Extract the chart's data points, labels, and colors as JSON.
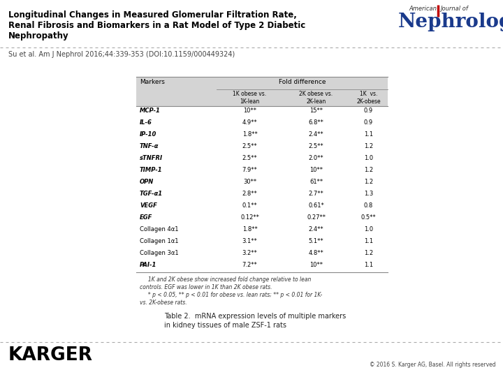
{
  "title_line1": "Longitudinal Changes in Measured Glomerular Filtration Rate,",
  "title_line2": "Renal Fibrosis and Biomarkers in a Rat Model of Type 2 Diabetic",
  "title_line3": "Nephropathy",
  "subtitle": "Su et al. Am J Nephrol 2016;44:339-353 (DOI:10.1159/000449324)",
  "table_title_line1": "Table 2.  mRNA expression levels of multiple markers",
  "table_title_line2": "in kidney tissues of male ZSF-1 rats",
  "footer_left": "KARGER",
  "footer_right": "© 2016 S. Karger AG, Basel. All rights reserved",
  "rows": [
    [
      "MCP-1",
      "10**",
      "15**",
      "0.9"
    ],
    [
      "IL-6",
      "4.9**",
      "6.8**",
      "0.9"
    ],
    [
      "IP-10",
      "1.8**",
      "2.4**",
      "1.1"
    ],
    [
      "TNF-α",
      "2.5**",
      "2.5**",
      "1.2"
    ],
    [
      "sTNFRI",
      "2.5**",
      "2.0**",
      "1.0"
    ],
    [
      "TIMP-1",
      "7.9**",
      "10**",
      "1.2"
    ],
    [
      "OPN",
      "30**",
      "61**",
      "1.2"
    ],
    [
      "TGF-α1",
      "2.8**",
      "2.7**",
      "1.3"
    ],
    [
      "VEGF",
      "0.1**",
      "0.61*",
      "0.8"
    ],
    [
      "EGF",
      "0.12**",
      "0.27**",
      "0.5**"
    ],
    [
      "Collagen 4α1",
      "1.8**",
      "2.4**",
      "1.0"
    ],
    [
      "Collagen 1α1",
      "3.1**",
      "5.1**",
      "1.1"
    ],
    [
      "Collagen 3α1",
      "3.2**",
      "4.8**",
      "1.2"
    ],
    [
      "PAI-1",
      "7.2**",
      "10**",
      "1.1"
    ]
  ],
  "italic_rows": [
    "MCP-1",
    "IL-6",
    "IP-10",
    "TNF-α",
    "sTNFRI",
    "TIMP-1",
    "OPN",
    "TGF-α1",
    "VEGF",
    "EGF",
    "PAI-1"
  ],
  "bold_rows": [
    "MCP-1",
    "IL-6",
    "IP-10",
    "TNF-α",
    "sTNFRI",
    "TIMP-1",
    "OPN",
    "TGF-α1",
    "VEGF",
    "EGF",
    "PAI-1"
  ],
  "footnote_lines": [
    "     1K and 2K obese show increased fold change relative to lean",
    "controls. EGF was lower in 1K than 2K obese rats.",
    "     * p < 0.05, ** p < 0.01 for obese vs. lean rats; ** p < 0.01 for 1K-",
    "vs. 2K-obese rats."
  ],
  "bg_color": "#ffffff",
  "title_color": "#000000",
  "header_bg": "#d4d4d4",
  "table_line_color": "#888888",
  "nephrology_blue": "#1a3a8c",
  "nephrology_red": "#c00000",
  "dash_color": "#aaaaaa"
}
